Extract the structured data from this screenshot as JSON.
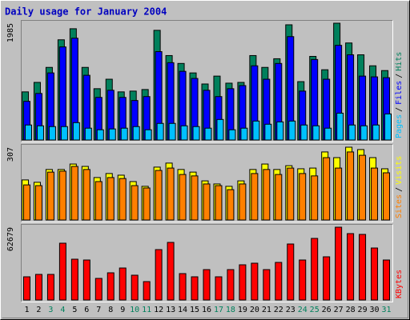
{
  "chart_data": [
    {
      "type": "bar",
      "title": "Daily usage for January 2004",
      "categories": [
        "1",
        "2",
        "3",
        "4",
        "5",
        "6",
        "7",
        "8",
        "9",
        "10",
        "11",
        "12",
        "13",
        "14",
        "15",
        "16",
        "17",
        "18",
        "19",
        "20",
        "21",
        "22",
        "23",
        "24",
        "25",
        "26",
        "27",
        "28",
        "29",
        "30",
        "31"
      ],
      "category_colors": [
        "#000000",
        "#000000",
        "#00805c",
        "#00805c",
        "#000000",
        "#000000",
        "#000000",
        "#000000",
        "#000000",
        "#00805c",
        "#00805c",
        "#000000",
        "#000000",
        "#000000",
        "#000000",
        "#000000",
        "#00805c",
        "#00805c",
        "#000000",
        "#000000",
        "#000000",
        "#000000",
        "#000000",
        "#00805c",
        "#00805c",
        "#000000",
        "#000000",
        "#000000",
        "#000000",
        "#000000",
        "#00805c"
      ],
      "ylim": [
        0,
        1985
      ],
      "yticks": [
        1985
      ],
      "legend_separator": "/",
      "series": [
        {
          "name": "Hits",
          "color": "#00805c",
          "values": [
            818,
            979,
            1234,
            1703,
            1891,
            1234,
            872,
            1033,
            818,
            831,
            858,
            1864,
            1435,
            1301,
            1140,
            952,
            1086,
            966,
            979,
            1435,
            1234,
            1381,
            1958,
            992,
            1421,
            1194,
            1985,
            1649,
            1448,
            1261,
            1180
          ]
        },
        {
          "name": "Files",
          "color": "#0000ff",
          "values": [
            657,
            791,
            1140,
            1582,
            1730,
            1100,
            724,
            845,
            724,
            671,
            738,
            1502,
            1314,
            1167,
            1046,
            845,
            738,
            872,
            925,
            1261,
            1033,
            1301,
            1757,
            831,
            1368,
            1033,
            1609,
            1448,
            1086,
            1073,
            1059
          ]
        },
        {
          "name": "Pages",
          "color": "#00c0ff",
          "values": [
            255,
            241,
            228,
            228,
            295,
            201,
            174,
            188,
            201,
            228,
            174,
            282,
            282,
            241,
            228,
            201,
            349,
            174,
            201,
            322,
            268,
            308,
            322,
            255,
            241,
            201,
            456,
            255,
            241,
            255,
            443
          ]
        }
      ]
    },
    {
      "type": "bar",
      "ylim": [
        0,
        307
      ],
      "yticks": [
        307
      ],
      "legend_separator": "/",
      "series": [
        {
          "name": "Visits",
          "color": "#ffff00",
          "values": [
            169,
            159,
            213,
            213,
            236,
            226,
            179,
            196,
            189,
            162,
            142,
            223,
            240,
            213,
            202,
            165,
            152,
            142,
            165,
            213,
            236,
            213,
            229,
            216,
            219,
            287,
            263,
            307,
            297,
            263,
            216
          ]
        },
        {
          "name": "Sites",
          "color": "#ff8000",
          "values": [
            148,
            145,
            202,
            206,
            226,
            213,
            162,
            179,
            175,
            145,
            135,
            209,
            219,
            192,
            186,
            152,
            145,
            128,
            152,
            196,
            213,
            192,
            219,
            196,
            186,
            263,
            219,
            287,
            273,
            219,
            199
          ]
        }
      ]
    },
    {
      "type": "bar",
      "ylim": [
        0,
        62679
      ],
      "yticks": [
        62679
      ],
      "legend_separator": "/",
      "series": [
        {
          "name": "KBytes",
          "color": "#ff0000",
          "values": [
            19975,
            22042,
            22042,
            48905,
            35129,
            34440,
            18598,
            23419,
            27552,
            21353,
            15842,
            43394,
            49594,
            22730,
            19975,
            26174,
            19975,
            26174,
            30307,
            31685,
            26174,
            32374,
            48216,
            34440,
            53038,
            37195,
            62679,
            57170,
            56482,
            44772,
            34440
          ]
        }
      ]
    }
  ]
}
